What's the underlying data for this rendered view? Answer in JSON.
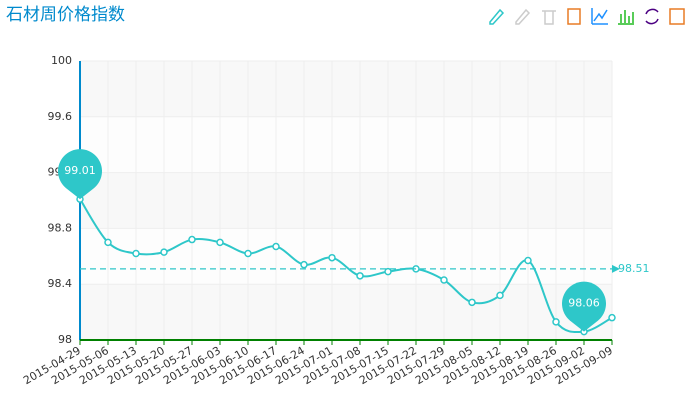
{
  "chart_data": {
    "type": "line",
    "title": "石材周价格指数",
    "categories": [
      "2015-04-29",
      "2015-05-06",
      "2015-05-13",
      "2015-05-20",
      "2015-05-27",
      "2015-06-03",
      "2015-06-10",
      "2015-06-17",
      "2015-06-24",
      "2015-07-01",
      "2015-07-08",
      "2015-07-15",
      "2015-07-22",
      "2015-07-29",
      "2015-08-05",
      "2015-08-12",
      "2015-08-19",
      "2015-08-26",
      "2015-09-02",
      "2015-09-09"
    ],
    "series": [
      {
        "color": "#2ec7c9",
        "values": [
          99.01,
          98.7,
          98.62,
          98.63,
          98.72,
          98.7,
          98.62,
          98.67,
          98.54,
          98.59,
          98.46,
          98.49,
          98.51,
          98.43,
          98.27,
          98.32,
          98.57,
          98.13,
          98.06,
          98.16
        ]
      }
    ],
    "average": 98.51,
    "ylim": [
      98,
      100
    ],
    "yticks": [
      98,
      98.4,
      98.8,
      99.2,
      99.6,
      100
    ],
    "grid": true
  }
}
